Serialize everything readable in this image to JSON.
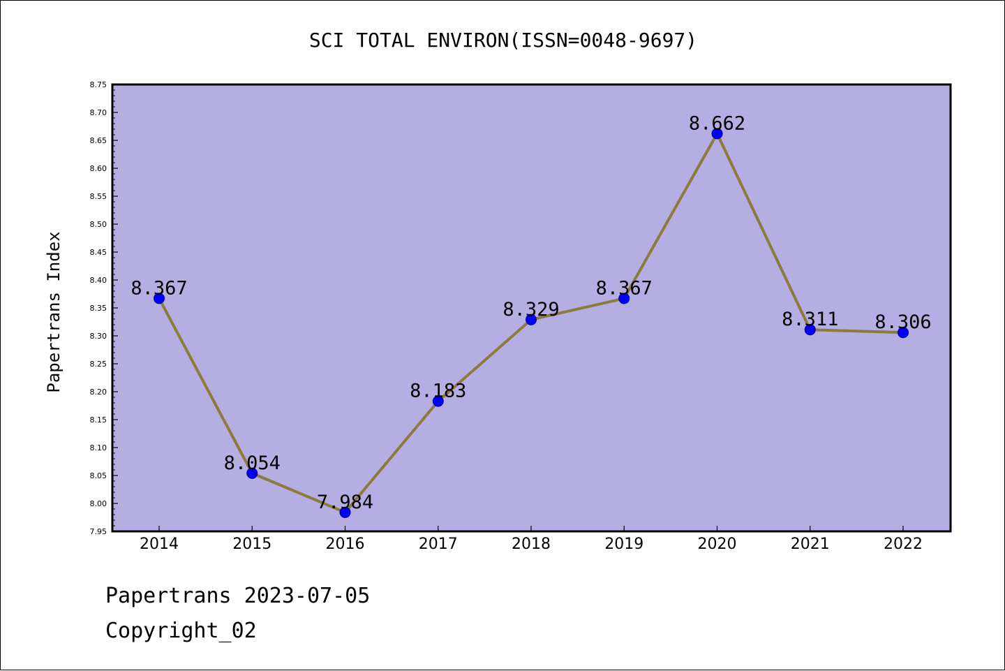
{
  "chart_data": {
    "type": "line",
    "title": "SCI TOTAL ENVIRON(ISSN=0048-9697)",
    "ylabel": "Papertrans Index",
    "xlabel": "",
    "categories": [
      "2014",
      "2015",
      "2016",
      "2017",
      "2018",
      "2019",
      "2020",
      "2021",
      "2022"
    ],
    "values": [
      8.367,
      8.054,
      7.984,
      8.183,
      8.329,
      8.367,
      8.662,
      8.311,
      8.306
    ],
    "data_labels": [
      "8.367",
      "8.054",
      "7.984",
      "8.183",
      "8.329",
      "8.367",
      "8.662",
      "8.311",
      "8.306"
    ],
    "ylim": [
      7.95,
      8.75
    ],
    "yticks": [
      "7.95",
      "8.00",
      "8.05",
      "8.10",
      "8.15",
      "8.20",
      "8.25",
      "8.30",
      "8.35",
      "8.40",
      "8.45",
      "8.50",
      "8.55",
      "8.60",
      "8.65",
      "8.70",
      "8.75"
    ],
    "grid": false,
    "legend": "none",
    "colors": {
      "plot_background": "#b4aee2",
      "line": "#8b7b3d",
      "marker": "#0000ff",
      "marker_edge": "#00008b"
    }
  },
  "footer": {
    "line1": "Papertrans 2023-07-05",
    "line2": "Copyright_02"
  }
}
